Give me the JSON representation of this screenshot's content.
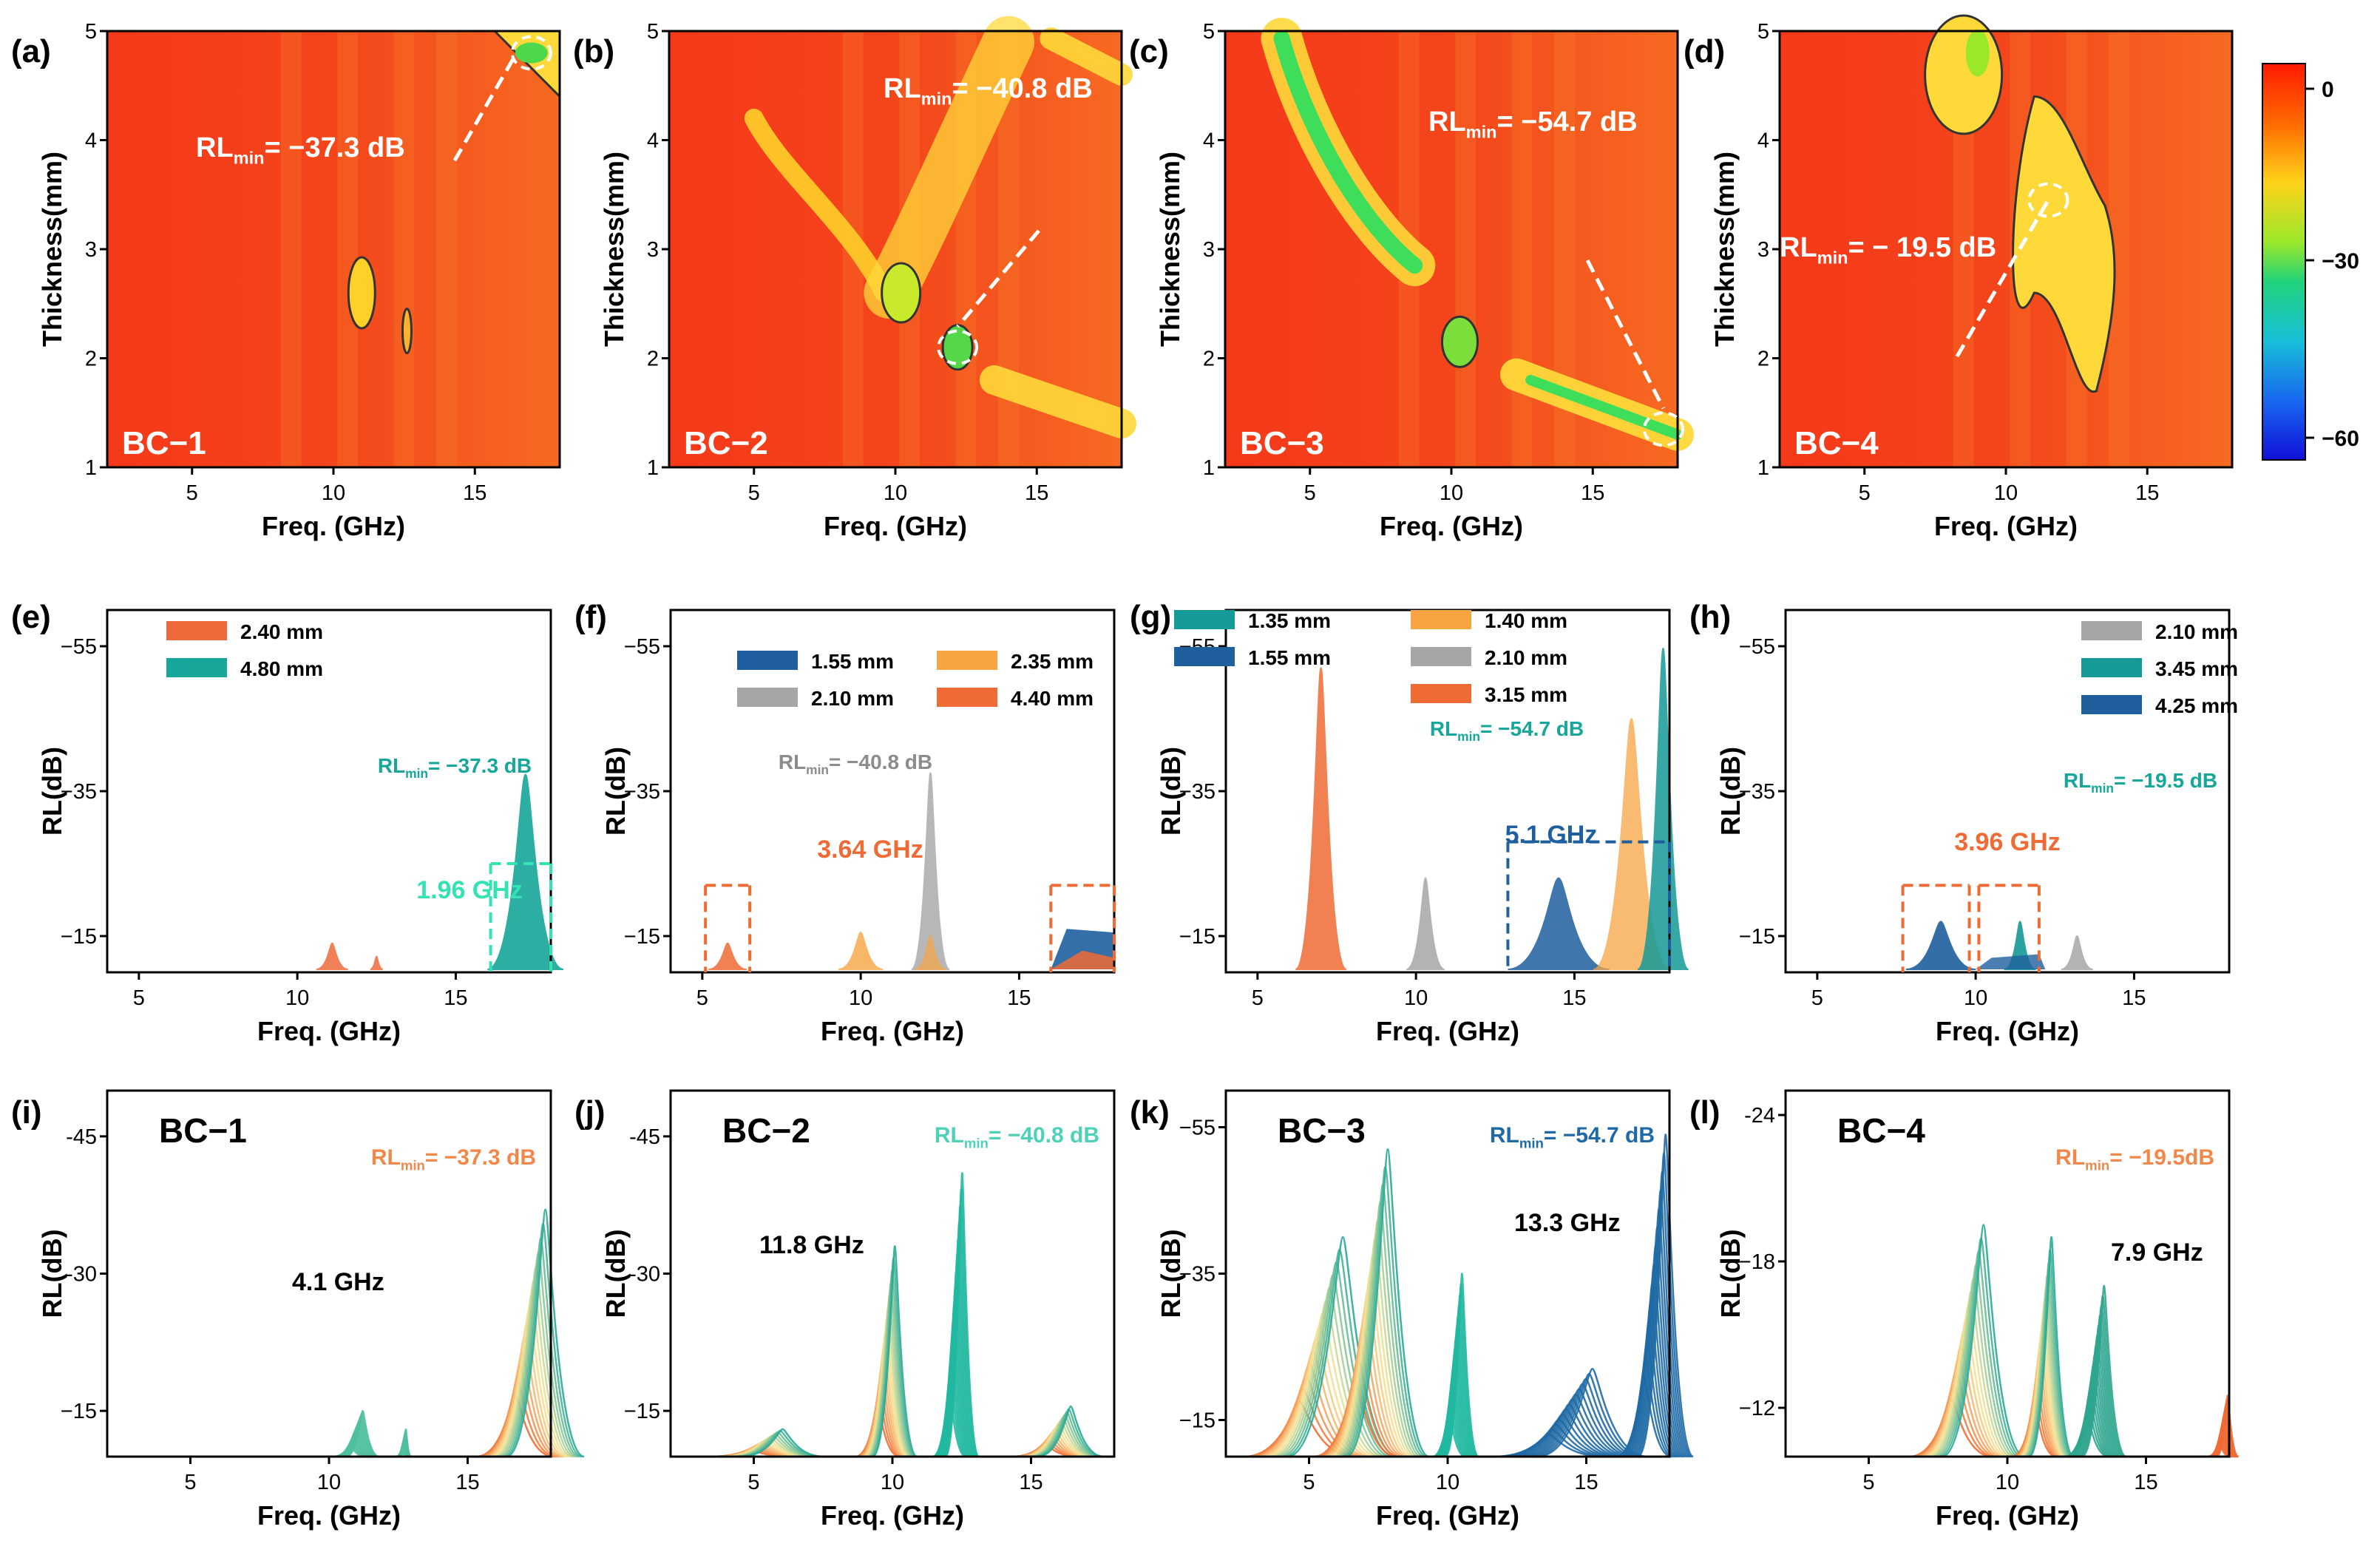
{
  "chart_data": [
    {
      "type": "heatmap",
      "panel": "(a)",
      "sample": "BC−1",
      "xlabel": "Freq. (GHz)",
      "ylabel": "Thickness(mm)",
      "xlim": [
        2,
        18
      ],
      "ylim": [
        1,
        5
      ],
      "xticks": [
        "5",
        "10",
        "15"
      ],
      "yticks": [
        "1",
        "2",
        "3",
        "4",
        "5"
      ],
      "annotation": {
        "text": "RL",
        "sub": "min",
        "value": "= −37.3 dB",
        "freq": 17,
        "thickness": 4.8
      }
    },
    {
      "type": "heatmap",
      "panel": "(b)",
      "sample": "BC−2",
      "xlabel": "Freq. (GHz)",
      "ylabel": "Thickness(mm)",
      "xlim": [
        2,
        18
      ],
      "ylim": [
        1,
        5
      ],
      "xticks": [
        "5",
        "10",
        "15"
      ],
      "yticks": [
        "1",
        "2",
        "3",
        "4",
        "5"
      ],
      "annotation": {
        "text": "RL",
        "sub": "min",
        "value": "= −40.8 dB",
        "freq": 12.2,
        "thickness": 2.1
      }
    },
    {
      "type": "heatmap",
      "panel": "(c)",
      "sample": "BC−3",
      "xlabel": "Freq. (GHz)",
      "ylabel": "Thickness(mm)",
      "xlim": [
        2,
        18
      ],
      "ylim": [
        1,
        5
      ],
      "xticks": [
        "5",
        "10",
        "15"
      ],
      "yticks": [
        "1",
        "2",
        "3",
        "4",
        "5"
      ],
      "annotation": {
        "text": "RL",
        "sub": "min",
        "value": "= −54.7 dB",
        "freq": 17.5,
        "thickness": 1.35
      }
    },
    {
      "type": "heatmap",
      "panel": "(d)",
      "sample": "BC−4",
      "xlabel": "Freq. (GHz)",
      "ylabel": "Thickness(mm)",
      "xlim": [
        2,
        18
      ],
      "ylim": [
        1,
        5
      ],
      "xticks": [
        "5",
        "10",
        "15"
      ],
      "yticks": [
        "1",
        "2",
        "3",
        "4",
        "5"
      ],
      "annotation": {
        "text": "RL",
        "sub": "min",
        "value": "= − 19.5 dB",
        "freq": 11.5,
        "thickness": 3.45
      },
      "colorbar": {
        "range": [
          -60,
          0
        ],
        "ticks": [
          "0",
          "−30",
          "−60"
        ]
      }
    },
    {
      "type": "area",
      "panel": "(e)",
      "xlabel": "Freq. (GHz)",
      "ylabel": "RL(dB)",
      "xlim": [
        4,
        18
      ],
      "ylim": [
        -10,
        -60
      ],
      "xticks": [
        "5",
        "10",
        "15"
      ],
      "yticks": [
        "−55",
        "−35",
        "−15"
      ],
      "series": [
        {
          "name": "2.40 mm",
          "color": "#ee6a3a",
          "peaks": [
            [
              11.1,
              -14.5
            ],
            [
              12.5,
              -12
            ]
          ]
        },
        {
          "name": "4.80 mm",
          "color": "#16a69a",
          "peaks": [
            [
              17.3,
              -37.3
            ]
          ]
        }
      ],
      "rlmin": "RL",
      "rlmin_sub": "min",
      "rlmin_value": "= −37.3 dB",
      "bandwidth": "1.96 GHz"
    },
    {
      "type": "area",
      "panel": "(f)",
      "xlabel": "Freq. (GHz)",
      "ylabel": "RL(dB)",
      "xlim": [
        4,
        18
      ],
      "ylim": [
        -10,
        -60
      ],
      "xticks": [
        "5",
        "10",
        "15"
      ],
      "yticks": [
        "−55",
        "−35",
        "−15"
      ],
      "series": [
        {
          "name": "1.55 mm",
          "color": "#1f5f9e"
        },
        {
          "name": "2.35 mm",
          "color": "#f7a443"
        },
        {
          "name": "2.10 mm",
          "color": "#a6a6a6"
        },
        {
          "name": "4.40 mm",
          "color": "#ef6b35"
        }
      ],
      "rlmin": "RL",
      "rlmin_sub": "min",
      "rlmin_value": "= −40.8 dB",
      "bandwidth": "3.64 GHz"
    },
    {
      "type": "area",
      "panel": "(g)",
      "xlabel": "Freq. (GHz)",
      "ylabel": "RL(dB)",
      "xlim": [
        4,
        18
      ],
      "ylim": [
        -10,
        -60
      ],
      "xticks": [
        "5",
        "10",
        "15"
      ],
      "yticks": [
        "−55",
        "−35",
        "−15"
      ],
      "series": [
        {
          "name": "1.35 mm",
          "color": "#169a98"
        },
        {
          "name": "1.55 mm",
          "color": "#1f5f9e"
        },
        {
          "name": "1.40 mm",
          "color": "#f7a443"
        },
        {
          "name": "2.10 mm",
          "color": "#a6a6a6"
        },
        {
          "name": "3.15 mm",
          "color": "#ef6b35"
        }
      ],
      "rlmin": "RL",
      "rlmin_sub": "min",
      "rlmin_value": "= −54.7 dB",
      "bandwidth": "5.1 GHz"
    },
    {
      "type": "area",
      "panel": "(h)",
      "xlabel": "Freq. (GHz)",
      "ylabel": "RL(dB)",
      "xlim": [
        4,
        18
      ],
      "ylim": [
        -10,
        -60
      ],
      "xticks": [
        "5",
        "10",
        "15"
      ],
      "yticks": [
        "−55",
        "−35",
        "−15"
      ],
      "series": [
        {
          "name": "2.10 mm",
          "color": "#a6a6a6"
        },
        {
          "name": "3.45 mm",
          "color": "#169a98"
        },
        {
          "name": "4.25 mm",
          "color": "#1f5f9e"
        }
      ],
      "rlmin": "RL",
      "rlmin_sub": "min",
      "rlmin_value": "= −19.5 dB",
      "bandwidth": "3.96 GHz"
    },
    {
      "type": "line",
      "panel": "(i)",
      "sample": "BC−1",
      "xlabel": "Freq. (GHz)",
      "ylabel": "RL(dB)",
      "xlim": [
        2,
        18
      ],
      "ylim": [
        -10,
        -50
      ],
      "xticks": [
        "5",
        "10",
        "15"
      ],
      "yticks": [
        "-45",
        "-30",
        "−15"
      ],
      "rlmin": "RL",
      "rlmin_sub": "min",
      "rlmin_value": "= −37.3 dB",
      "rlmin_color": "#f2874a",
      "bandwidth": "4.1 GHz"
    },
    {
      "type": "line",
      "panel": "(j)",
      "sample": "BC−2",
      "xlabel": "Freq. (GHz)",
      "ylabel": "RL(dB)",
      "xlim": [
        2,
        18
      ],
      "ylim": [
        -10,
        -50
      ],
      "xticks": [
        "5",
        "10",
        "15"
      ],
      "yticks": [
        "-45",
        "-30",
        "−15"
      ],
      "rlmin": "RL",
      "rlmin_sub": "min",
      "rlmin_value": "= −40.8 dB",
      "rlmin_color": "#4fd1b9",
      "bandwidth": "11.8 GHz"
    },
    {
      "type": "line",
      "panel": "(k)",
      "sample": "BC−3",
      "xlabel": "Freq. (GHz)",
      "ylabel": "RL(dB)",
      "xlim": [
        2,
        18
      ],
      "ylim": [
        -10,
        -60
      ],
      "xticks": [
        "5",
        "10",
        "15"
      ],
      "yticks": [
        "−55",
        "−35",
        "−15"
      ],
      "rlmin": "RL",
      "rlmin_sub": "min",
      "rlmin_value": "= −54.7 dB",
      "rlmin_color": "#1f6aa5",
      "bandwidth": "13.3 GHz"
    },
    {
      "type": "line",
      "panel": "(l)",
      "sample": "BC−4",
      "xlabel": "Freq. (GHz)",
      "ylabel": "RL(dB)",
      "xlim": [
        2,
        18
      ],
      "ylim": [
        -10,
        -25
      ],
      "xticks": [
        "5",
        "10",
        "15"
      ],
      "yticks": [
        "-24",
        "−18",
        "−12"
      ],
      "rlmin": "RL",
      "rlmin_sub": "min",
      "rlmin_value": "= −19.5dB",
      "rlmin_color": "#f2874a",
      "bandwidth": "7.9 GHz"
    }
  ]
}
